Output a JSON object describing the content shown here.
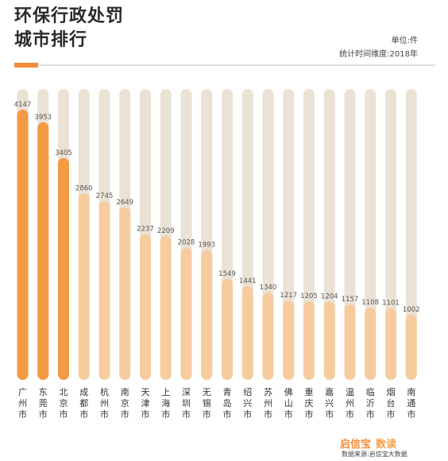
{
  "header": {
    "title_line1": "环保行政处罚",
    "title_line2": "城市排行",
    "unit": "单位:件",
    "dimension": "统计时间维度:2018年"
  },
  "footer": {
    "brand": "启信宝",
    "brand_suffix": "数读",
    "source": "数据来源:启信宝大数据"
  },
  "colors": {
    "track": "#ebe2d6",
    "top": "#f39a45",
    "rest": "#f6cc9f"
  },
  "chart_data": {
    "type": "bar",
    "title": "环保行政处罚城市排行",
    "categories": [
      "广州市",
      "东莞市",
      "北京市",
      "成都市",
      "杭州市",
      "南京市",
      "天津市",
      "上海市",
      "深圳市",
      "无锡市",
      "青岛市",
      "绍兴市",
      "苏州市",
      "佛山市",
      "重庆市",
      "嘉兴市",
      "温州市",
      "临沂市",
      "烟台市",
      "南通市"
    ],
    "values": [
      4147,
      3953,
      3405,
      2860,
      2745,
      2649,
      2237,
      2209,
      2028,
      1993,
      1549,
      1441,
      1340,
      1217,
      1205,
      1204,
      1157,
      1108,
      1101,
      1002
    ],
    "ylim": [
      0,
      4147
    ],
    "highlight_top": 3
  }
}
